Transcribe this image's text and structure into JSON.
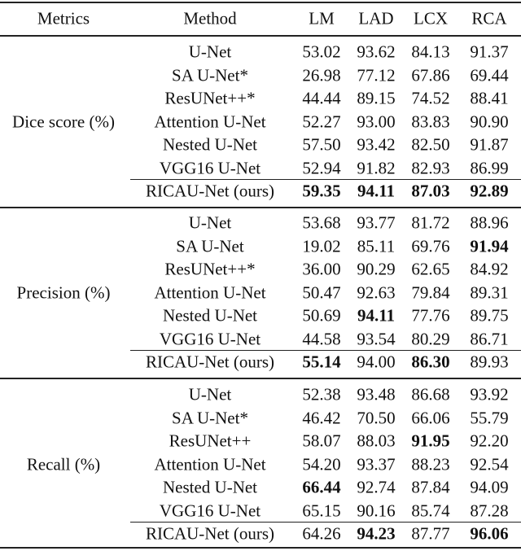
{
  "header": [
    "Metrics",
    "Method",
    "LM",
    "LAD",
    "LCX",
    "RCA"
  ],
  "sections": [
    {
      "metric": "Dice score (%)",
      "rows": [
        {
          "method": "U-Net",
          "values": [
            "53.02",
            "93.62",
            "84.13",
            "91.37"
          ],
          "bold": [
            false,
            false,
            false,
            false
          ]
        },
        {
          "method": "SA U-Net*",
          "values": [
            "26.98",
            "77.12",
            "67.86",
            "69.44"
          ],
          "bold": [
            false,
            false,
            false,
            false
          ]
        },
        {
          "method": "ResUNet++*",
          "values": [
            "44.44",
            "89.15",
            "74.52",
            "88.41"
          ],
          "bold": [
            false,
            false,
            false,
            false
          ]
        },
        {
          "method": "Attention U-Net",
          "values": [
            "52.27",
            "93.00",
            "83.83",
            "90.90"
          ],
          "bold": [
            false,
            false,
            false,
            false
          ]
        },
        {
          "method": "Nested U-Net",
          "values": [
            "57.50",
            "93.42",
            "82.50",
            "91.87"
          ],
          "bold": [
            false,
            false,
            false,
            false
          ]
        },
        {
          "method": "VGG16 U-Net",
          "values": [
            "52.94",
            "91.82",
            "82.93",
            "86.99"
          ],
          "bold": [
            false,
            false,
            false,
            false
          ]
        },
        {
          "method": "RICAU-Net (ours)",
          "values": [
            "59.35",
            "94.11",
            "87.03",
            "92.89"
          ],
          "bold": [
            true,
            true,
            true,
            true
          ]
        }
      ]
    },
    {
      "metric": "Precision (%)",
      "rows": [
        {
          "method": "U-Net",
          "values": [
            "53.68",
            "93.77",
            "81.72",
            "88.96"
          ],
          "bold": [
            false,
            false,
            false,
            false
          ]
        },
        {
          "method": "SA U-Net",
          "values": [
            "19.02",
            "85.11",
            "69.76",
            "91.94"
          ],
          "bold": [
            false,
            false,
            false,
            true
          ]
        },
        {
          "method": "ResUNet++*",
          "values": [
            "36.00",
            "90.29",
            "62.65",
            "84.92"
          ],
          "bold": [
            false,
            false,
            false,
            false
          ]
        },
        {
          "method": "Attention U-Net",
          "values": [
            "50.47",
            "92.63",
            "79.84",
            "89.31"
          ],
          "bold": [
            false,
            false,
            false,
            false
          ]
        },
        {
          "method": "Nested U-Net",
          "values": [
            "50.69",
            "94.11",
            "77.76",
            "89.75"
          ],
          "bold": [
            false,
            true,
            false,
            false
          ]
        },
        {
          "method": "VGG16 U-Net",
          "values": [
            "44.58",
            "93.54",
            "80.29",
            "86.71"
          ],
          "bold": [
            false,
            false,
            false,
            false
          ]
        },
        {
          "method": "RICAU-Net (ours)",
          "values": [
            "55.14",
            "94.00",
            "86.30",
            "89.93"
          ],
          "bold": [
            true,
            false,
            true,
            false
          ]
        }
      ]
    },
    {
      "metric": "Recall (%)",
      "rows": [
        {
          "method": "U-Net",
          "values": [
            "52.38",
            "93.48",
            "86.68",
            "93.92"
          ],
          "bold": [
            false,
            false,
            false,
            false
          ]
        },
        {
          "method": "SA U-Net*",
          "values": [
            "46.42",
            "70.50",
            "66.06",
            "55.79"
          ],
          "bold": [
            false,
            false,
            false,
            false
          ]
        },
        {
          "method": "ResUNet++",
          "values": [
            "58.07",
            "88.03",
            "91.95",
            "92.20"
          ],
          "bold": [
            false,
            false,
            true,
            false
          ]
        },
        {
          "method": "Attention U-Net",
          "values": [
            "54.20",
            "93.37",
            "88.23",
            "92.54"
          ],
          "bold": [
            false,
            false,
            false,
            false
          ]
        },
        {
          "method": "Nested U-Net",
          "values": [
            "66.44",
            "92.74",
            "87.84",
            "94.09"
          ],
          "bold": [
            true,
            false,
            false,
            false
          ]
        },
        {
          "method": "VGG16 U-Net",
          "values": [
            "65.15",
            "90.16",
            "85.74",
            "87.28"
          ],
          "bold": [
            false,
            false,
            false,
            false
          ]
        },
        {
          "method": "RICAU-Net (ours)",
          "values": [
            "64.26",
            "94.23",
            "87.77",
            "96.06"
          ],
          "bold": [
            false,
            true,
            false,
            true
          ]
        }
      ]
    }
  ]
}
